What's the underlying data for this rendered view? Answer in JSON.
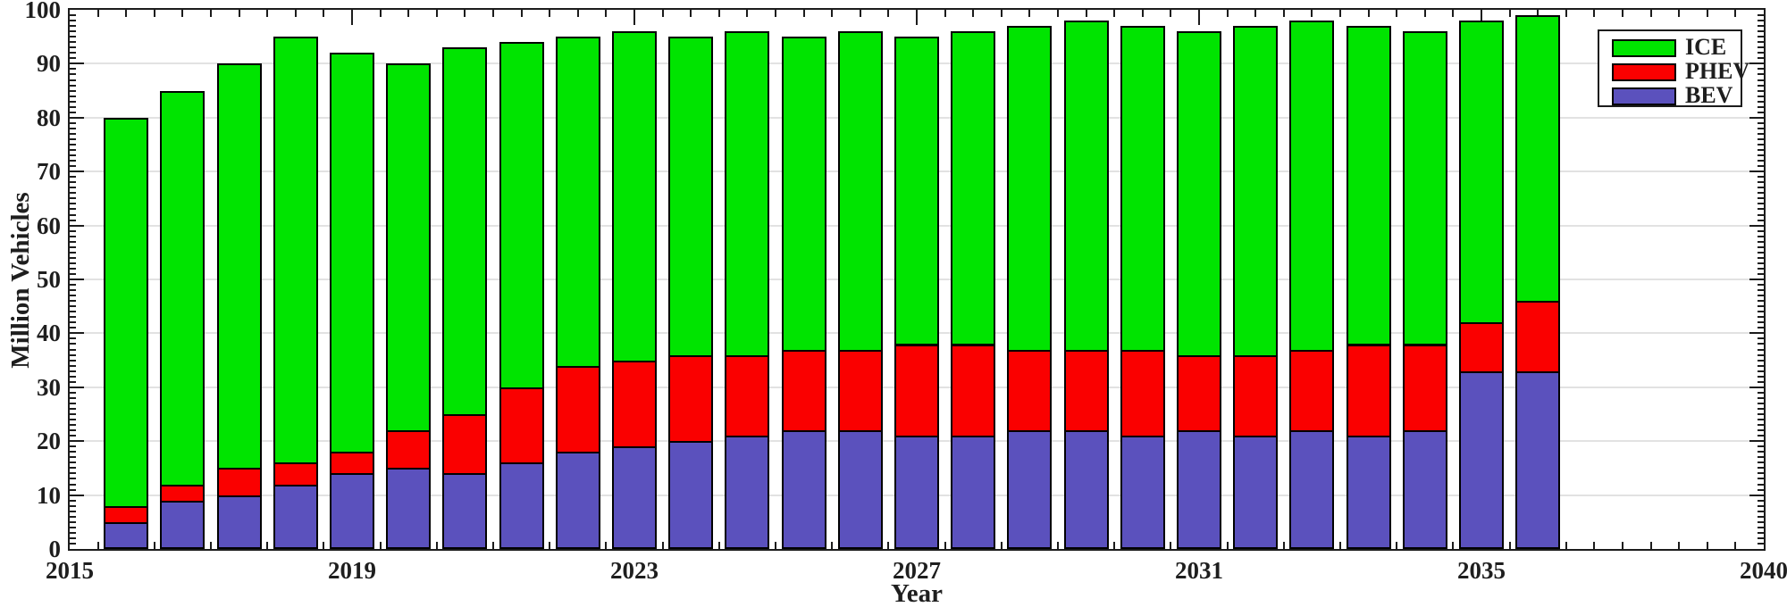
{
  "axes": {
    "ylabel": "Million Vehicles",
    "xlabel": "Year",
    "x_ticks": [
      {
        "label": "2015",
        "index": 0
      },
      {
        "label": "2019",
        "index": 5
      },
      {
        "label": "2023",
        "index": 10
      },
      {
        "label": "2027",
        "index": 15
      },
      {
        "label": "2031",
        "index": 20
      },
      {
        "label": "2035",
        "index": 25
      },
      {
        "label": "2040",
        "index": 30
      }
    ],
    "y_tick_values": [
      0,
      10,
      20,
      30,
      40,
      50,
      60,
      70,
      80,
      90,
      100
    ]
  },
  "legend": {
    "entries": [
      {
        "label": "ICE",
        "color": "#00e400"
      },
      {
        "label": "PHEV",
        "color": "#fa0000"
      },
      {
        "label": "BEV",
        "color": "#5b51bd"
      }
    ]
  },
  "colors": {
    "spine": "#1c1c1c",
    "grid": "#e2e2e2",
    "bar_edge": "#000000",
    "background": "#ffffff"
  },
  "chart_data": {
    "type": "bar",
    "stacked": true,
    "title": "",
    "xlabel": "Year",
    "ylabel": "Million Vehicles",
    "ylim": [
      0,
      100
    ],
    "xlim_labels": [
      2015,
      2040
    ],
    "x_tick_labels": [
      "2015",
      "2019",
      "2023",
      "2027",
      "2031",
      "2035",
      "2040"
    ],
    "grid": "horizontal",
    "legend_position": "top-right",
    "bar_count": 26,
    "note": "26 consecutive yearly bars spanning the axis from just after the 2015 tick to just after the 2035 tick; stack order bottom-to-top is BEV, PHEV, ICE",
    "series": [
      {
        "name": "BEV",
        "color": "#5b51bd",
        "values": [
          5,
          9,
          10,
          12,
          14,
          15,
          14,
          16,
          18,
          19,
          20,
          21,
          22,
          22,
          21,
          21,
          22,
          22,
          21,
          22,
          21,
          22,
          21,
          22,
          33,
          33
        ]
      },
      {
        "name": "PHEV",
        "color": "#fa0000",
        "values": [
          3,
          3,
          5,
          4,
          4,
          7,
          11,
          14,
          16,
          16,
          16,
          15,
          15,
          15,
          17,
          17,
          15,
          15,
          16,
          14,
          15,
          15,
          17,
          16,
          9,
          13
        ]
      },
      {
        "name": "ICE",
        "color": "#00e400",
        "values": [
          72,
          73,
          75,
          79,
          74,
          68,
          68,
          64,
          61,
          61,
          59,
          60,
          58,
          59,
          57,
          58,
          60,
          61,
          60,
          60,
          61,
          61,
          59,
          58,
          56,
          53
        ]
      }
    ],
    "totals": [
      80,
      85,
      90,
      95,
      92,
      90,
      93,
      94,
      95,
      96,
      95,
      96,
      95,
      96,
      95,
      96,
      97,
      98,
      97,
      96,
      97,
      98,
      97,
      96,
      98,
      99
    ]
  }
}
